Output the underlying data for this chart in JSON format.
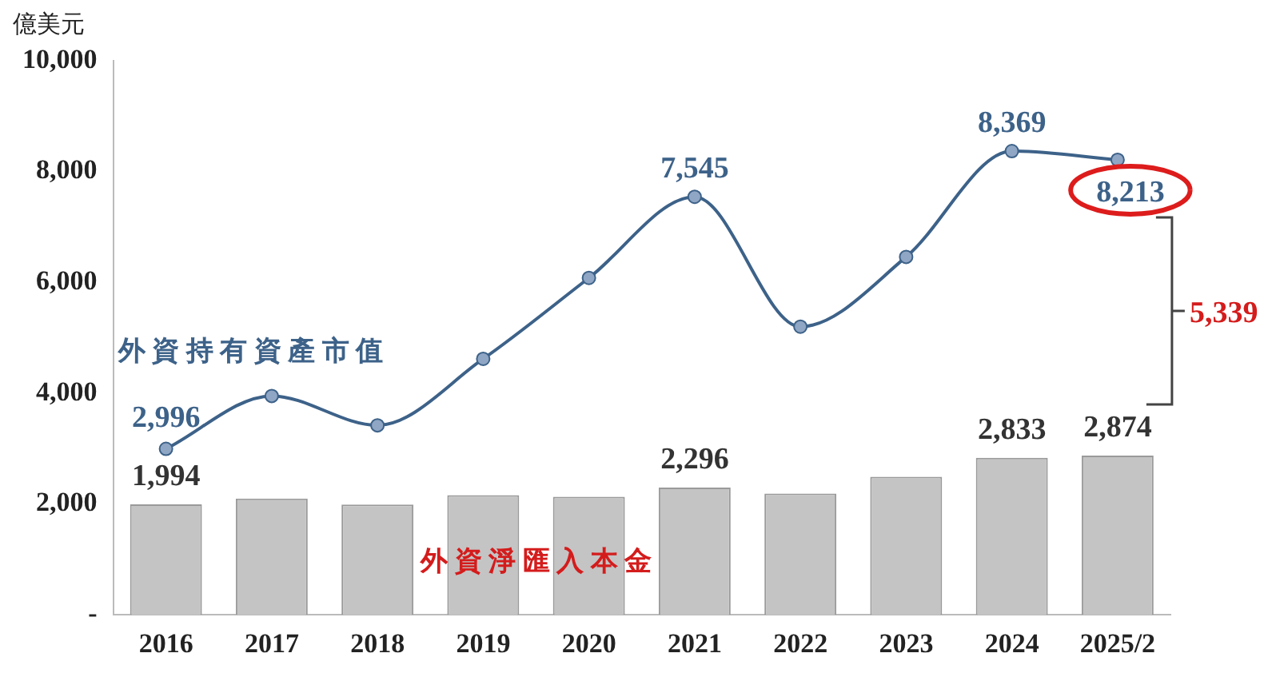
{
  "chart_data": {
    "type": "bar",
    "ylabel": "億美元",
    "categories": [
      "2016",
      "2017",
      "2018",
      "2019",
      "2020",
      "2021",
      "2022",
      "2023",
      "2024",
      "2025/2"
    ],
    "series": [
      {
        "name": "外資淨匯入本金",
        "color": "#c4c4c4",
        "values": [
          1994,
          2100,
          1990,
          2160,
          2130,
          2296,
          2190,
          2490,
          2833,
          2874
        ],
        "value_labels": [
          "1,994",
          null,
          null,
          null,
          null,
          "2,296",
          null,
          null,
          "2,833",
          "2,874"
        ]
      },
      {
        "name": "外資持有資產市值",
        "type": "line",
        "color": "#3d6289",
        "values": [
          2996,
          3950,
          3420,
          4620,
          6080,
          7545,
          5200,
          6460,
          8369,
          8213
        ],
        "value_labels": [
          "2,996",
          null,
          null,
          null,
          null,
          "7,545",
          null,
          null,
          "8,369",
          "8,213"
        ]
      }
    ],
    "ylim": [
      0,
      10000
    ],
    "yticks": [
      {
        "value": 0,
        "label": "-"
      },
      {
        "value": 2000,
        "label": "2,000"
      },
      {
        "value": 4000,
        "label": "4,000"
      },
      {
        "value": 6000,
        "label": "6,000"
      },
      {
        "value": 8000,
        "label": "8,000"
      },
      {
        "value": 10000,
        "label": "10,000"
      }
    ],
    "annotations": [
      "5,339"
    ],
    "grid": false,
    "legend": false,
    "marker": "circle",
    "line_style": "solid"
  }
}
